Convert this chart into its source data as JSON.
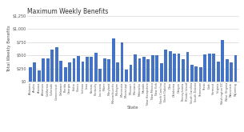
{
  "title": "Maximum Weekly Benefits",
  "xlabel": "State",
  "ylabel": "Total Weekly Benefits",
  "ylim": [
    0,
    1250
  ],
  "yticks": [
    0,
    250,
    500,
    750,
    1000,
    1250
  ],
  "bar_color": "#4472C4",
  "background_color": "#FFFFFF",
  "states": [
    "Alabama",
    "Alaska",
    "Arizona",
    "Arkansas",
    "California",
    "Colorado",
    "Connecticut",
    "Delaware",
    "Florida",
    "Georgia",
    "Idaho",
    "Illinois",
    "Indiana",
    "Iowa",
    "Kansas",
    "Kentucky",
    "Louisiana",
    "Maine",
    "Maryland",
    "Massachusetts",
    "Michigan",
    "Minnesota",
    "Mississippi",
    "Missouri",
    "Montana",
    "Nebraska",
    "Nevada",
    "New Hampshire",
    "New Mexico",
    "New York",
    "North Carolina",
    "North Dakota",
    "Ohio",
    "Oklahoma",
    "Oregon",
    "Pennsylvania",
    "Rhode Island",
    "South Carolina",
    "South Dakota",
    "Tennessee",
    "Texas",
    "Utah",
    "Vermont",
    "Virginia",
    "Washington DC",
    "West Virginia",
    "Wisconsin",
    "Wyoming"
  ],
  "values": [
    275,
    370,
    210,
    451,
    450,
    618,
    649,
    400,
    275,
    365,
    448,
    484,
    390,
    481,
    474,
    552,
    247,
    445,
    430,
    823,
    362,
    740,
    235,
    320,
    525,
    440,
    469,
    427,
    511,
    504,
    350,
    614,
    583,
    539,
    538,
    431,
    566,
    326,
    285,
    275,
    521,
    541,
    531,
    378,
    790,
    424,
    370,
    508
  ],
  "title_fontsize": 5.5,
  "axis_label_fontsize": 4.0,
  "tick_fontsize": 2.5,
  "ytick_fontsize": 3.5
}
